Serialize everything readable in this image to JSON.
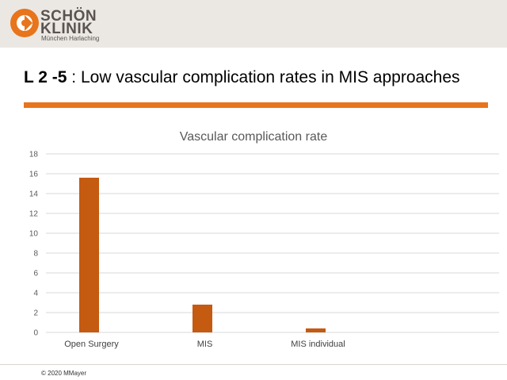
{
  "header": {
    "logo_line1": "SCHÖN",
    "logo_line2": "KLINIK",
    "logo_sub": "München Harlaching",
    "brand_color": "#e8741b"
  },
  "slide": {
    "title_bold": "L 2 -5",
    "title_rest": " : Low vascular complication rates in MIS approaches"
  },
  "chart_data": {
    "type": "bar",
    "title": "Vascular complication rate",
    "categories": [
      "Open Surgery",
      "MIS",
      "MIS individual"
    ],
    "values": [
      15.6,
      2.8,
      0.4
    ],
    "ylim": [
      0,
      18
    ],
    "yticks": [
      0,
      2,
      4,
      6,
      8,
      10,
      12,
      14,
      16,
      18
    ],
    "grid": true,
    "bar_color": "#c55a11"
  },
  "footer": {
    "copyright": "© 2020 MMayer"
  }
}
